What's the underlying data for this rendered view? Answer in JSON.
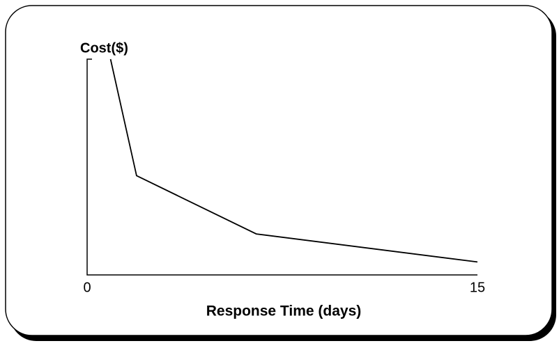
{
  "chart_data": {
    "type": "line",
    "title": "Cost($)",
    "x_label": "Response Time (days)",
    "x": [
      0.9,
      1.9,
      6.5,
      15
    ],
    "values": [
      100,
      46,
      19,
      6
    ],
    "color": "#000000",
    "xlim": [
      0,
      15
    ],
    "xticks": [
      0,
      15
    ],
    "ylim": [
      0,
      100
    ]
  }
}
